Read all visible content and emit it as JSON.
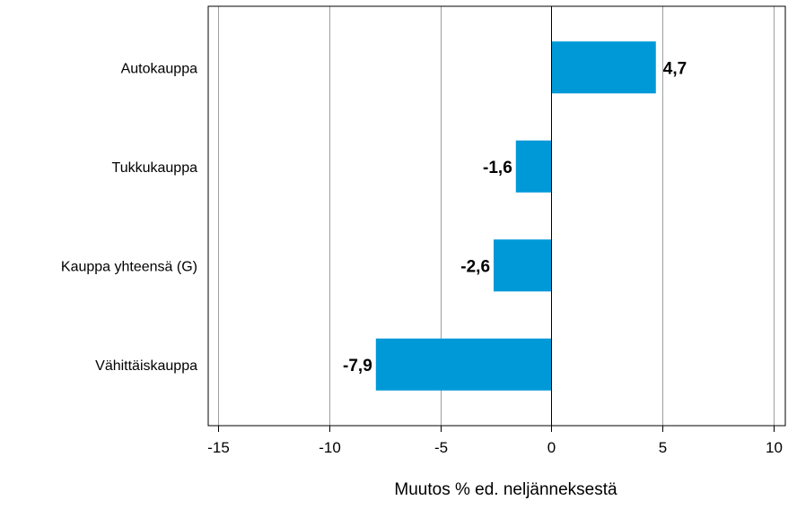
{
  "chart_data": {
    "type": "bar",
    "orientation": "horizontal",
    "categories": [
      "Autokauppa",
      "Tukkukauppa",
      "Kauppa yhteensä (G)",
      "Vähittäiskauppa"
    ],
    "values": [
      4.7,
      -1.6,
      -2.6,
      -7.9
    ],
    "data_labels": [
      "4,7",
      "-1,6",
      "-2,6",
      "-7,9"
    ],
    "title": "",
    "xlabel": "Muutos % ed. neljänneksestä",
    "ylabel": "",
    "xlim": [
      -15,
      10
    ],
    "x_ticks": [
      -15,
      -10,
      -5,
      0,
      5,
      10
    ],
    "x_tick_labels": [
      "-15",
      "-10",
      "-5",
      "0",
      "5",
      "10"
    ],
    "grid": true,
    "legend": "none",
    "bar_color": "#0099d8",
    "grid_color": "#9e9e9e",
    "axis_color": "#000000"
  }
}
